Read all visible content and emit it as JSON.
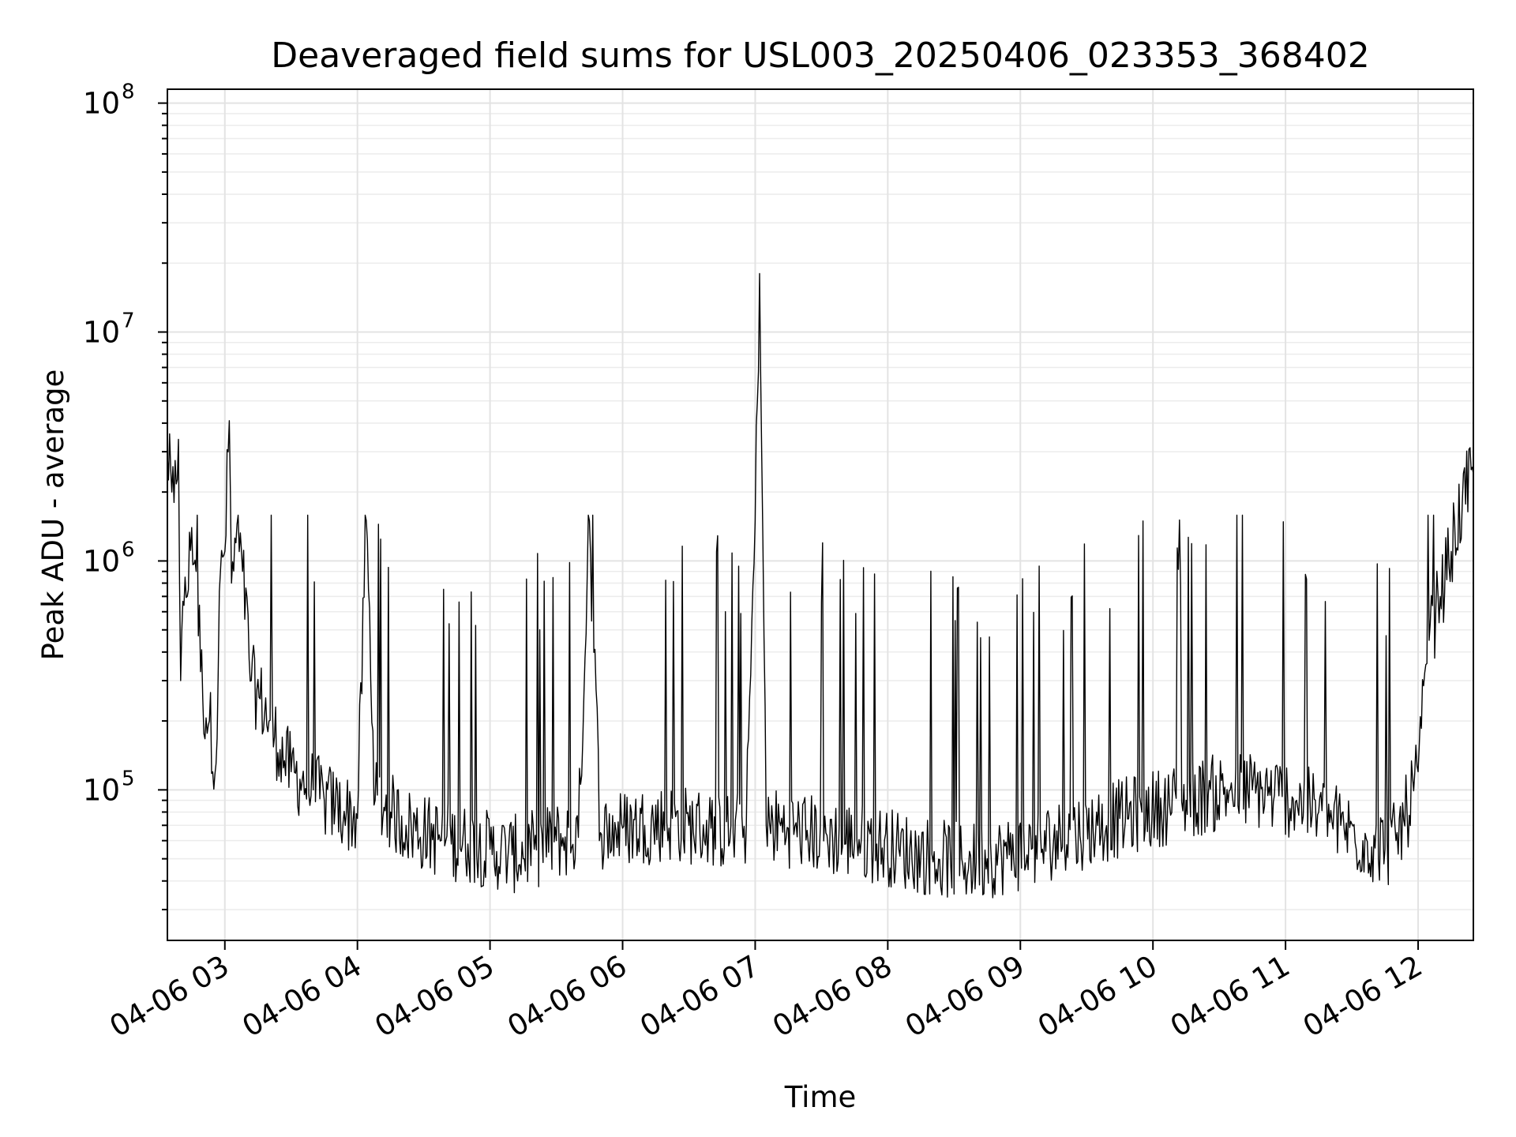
{
  "chart_data": {
    "type": "line",
    "title": "Deaveraged field sums for USL003_20250406_023353_368402",
    "xlabel": "Time",
    "ylabel": "Peak ADU - average",
    "yscale": "log",
    "ylim": [
      22000,
      115000000
    ],
    "xlim": [
      "04-06 02:34",
      "04-06 12:25"
    ],
    "grid": true,
    "x_ticks": [
      "04-06 03",
      "04-06 04",
      "04-06 05",
      "04-06 06",
      "04-06 07",
      "04-06 08",
      "04-06 09",
      "04-06 10",
      "04-06 11",
      "04-06 12"
    ],
    "y_ticks": [
      {
        "value": 100000,
        "base": "10",
        "exp": "5"
      },
      {
        "value": 1000000,
        "base": "10",
        "exp": "6"
      },
      {
        "value": 10000000,
        "base": "10",
        "exp": "7"
      },
      {
        "value": 100000000,
        "base": "10",
        "exp": "8"
      }
    ],
    "series": [
      {
        "color": "#000000",
        "x": [
          "04-06 02:34",
          "04-06 02:36",
          "04-06 02:37",
          "04-06 02:39",
          "04-06 02:40",
          "04-06 02:42",
          "04-06 02:43",
          "04-06 02:45",
          "04-06 02:47",
          "04-06 02:50",
          "04-06 02:53",
          "04-06 02:56",
          "04-06 02:58",
          "04-06 03:00",
          "04-06 03:02",
          "04-06 03:03",
          "04-06 03:05",
          "04-06 03:08",
          "04-06 03:12",
          "04-06 03:16",
          "04-06 03:20",
          "04-06 03:25",
          "04-06 03:30",
          "04-06 03:35",
          "04-06 03:40",
          "04-06 03:45",
          "04-06 03:50",
          "04-06 03:55",
          "04-06 04:00",
          "04-06 04:04",
          "04-06 04:08",
          "04-06 04:15",
          "04-06 04:22",
          "04-06 04:30",
          "04-06 04:40",
          "04-06 04:50",
          "04-06 05:00",
          "04-06 05:10",
          "04-06 05:20",
          "04-06 05:30",
          "04-06 05:40",
          "04-06 05:45",
          "04-06 05:50",
          "04-06 06:00",
          "04-06 06:10",
          "04-06 06:20",
          "04-06 06:30",
          "04-06 06:40",
          "04-06 06:50",
          "04-06 06:56",
          "04-06 07:00",
          "04-06 07:02",
          "04-06 07:05",
          "04-06 07:15",
          "04-06 07:25",
          "04-06 07:35",
          "04-06 07:45",
          "04-06 07:55",
          "04-06 08:05",
          "04-06 08:15",
          "04-06 08:25",
          "04-06 08:35",
          "04-06 08:45",
          "04-06 08:55",
          "04-06 09:05",
          "04-06 09:15",
          "04-06 09:25",
          "04-06 09:35",
          "04-06 09:45",
          "04-06 09:55",
          "04-06 10:05",
          "04-06 10:15",
          "04-06 10:25",
          "04-06 10:35",
          "04-06 10:45",
          "04-06 10:55",
          "04-06 11:05",
          "04-06 11:15",
          "04-06 11:25",
          "04-06 11:35",
          "04-06 11:45",
          "04-06 11:50",
          "04-06 11:55",
          "04-06 12:00",
          "04-06 12:05",
          "04-06 12:10",
          "04-06 12:15",
          "04-06 12:20",
          "04-06 12:25"
        ],
        "y": [
          2900000,
          2000000,
          1800000,
          3400000,
          300000,
          850000,
          700000,
          1400000,
          900000,
          250000,
          200000,
          130000,
          900000,
          1100000,
          4100000,
          800000,
          1200000,
          900000,
          300000,
          250000,
          200000,
          150000,
          120000,
          110000,
          100000,
          90000,
          85000,
          80000,
          75000,
          1500000,
          90000,
          80000,
          70000,
          65000,
          60000,
          58000,
          55000,
          52000,
          55000,
          60000,
          62000,
          1500000,
          65000,
          68000,
          70000,
          72000,
          70000,
          68000,
          65000,
          70000,
          1500000,
          18000000,
          70000,
          68000,
          65000,
          62000,
          60000,
          58000,
          55000,
          52000,
          50000,
          48000,
          50000,
          52000,
          55000,
          60000,
          65000,
          70000,
          75000,
          80000,
          85000,
          90000,
          95000,
          100000,
          100000,
          95000,
          90000,
          80000,
          70000,
          60000,
          55000,
          60000,
          80000,
          120000,
          450000,
          700000,
          1100000,
          1800000,
          2400000
        ]
      }
    ]
  }
}
